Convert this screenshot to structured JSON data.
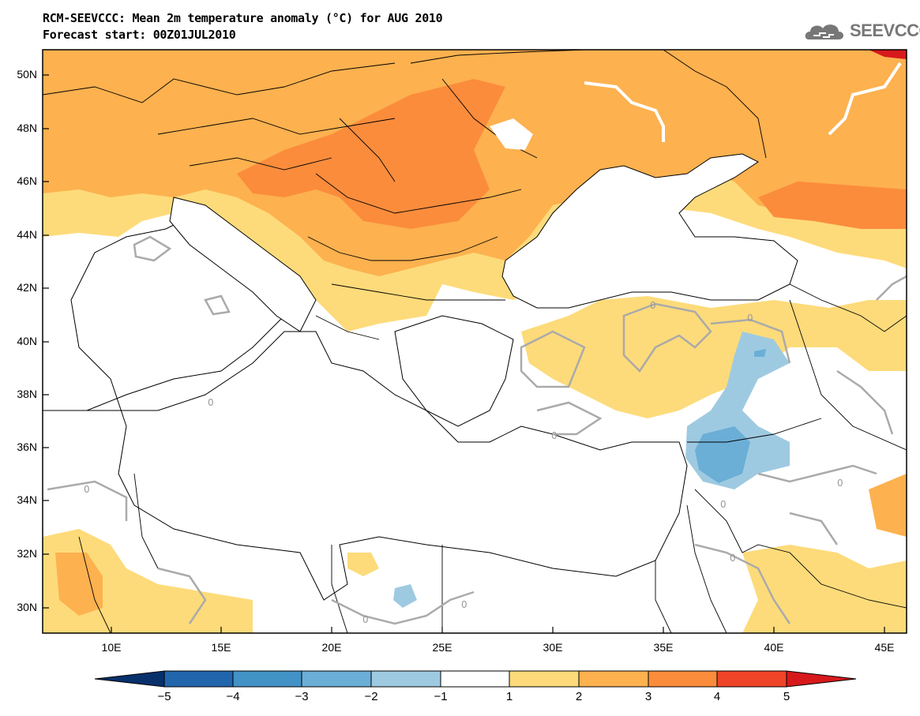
{
  "header": {
    "title_line1": "RCM-SEEVCCC: Mean 2m temperature anomaly (°C) for AUG 2010",
    "title_line2": "Forecast start: 00Z01JUL2010",
    "logo_text": "SEEVCCC",
    "logo_icon": "cloud-icon"
  },
  "map": {
    "lat_ticks": [
      "50N",
      "48N",
      "46N",
      "44N",
      "42N",
      "40N",
      "38N",
      "36N",
      "34N",
      "32N",
      "30N"
    ],
    "lon_ticks": [
      "10E",
      "15E",
      "20E",
      "25E",
      "30E",
      "35E",
      "40E",
      "45E"
    ],
    "contour_label": "0",
    "colors": {
      "sea": "#ffffff",
      "land_neutral": "#ffffff",
      "anom_1_2": "#fddb7a",
      "anom_2_3": "#fdb14f",
      "anom_3_4": "#fb8c3c",
      "anom_4_5": "#f04428",
      "anom_gt5": "#d7191c",
      "anom_m1_m2": "#9ecae1",
      "anom_m2_m3": "#6baed6",
      "anom_m3_m4": "#4292c6",
      "anom_m4_m5": "#2166ac",
      "anom_lt_m5": "#08306b",
      "contour": "#aaaaaa",
      "border": "#000000"
    }
  },
  "colorbar": {
    "labels": [
      "−5",
      "−4",
      "−3",
      "−2",
      "−1",
      "1",
      "2",
      "3",
      "4",
      "5"
    ]
  }
}
